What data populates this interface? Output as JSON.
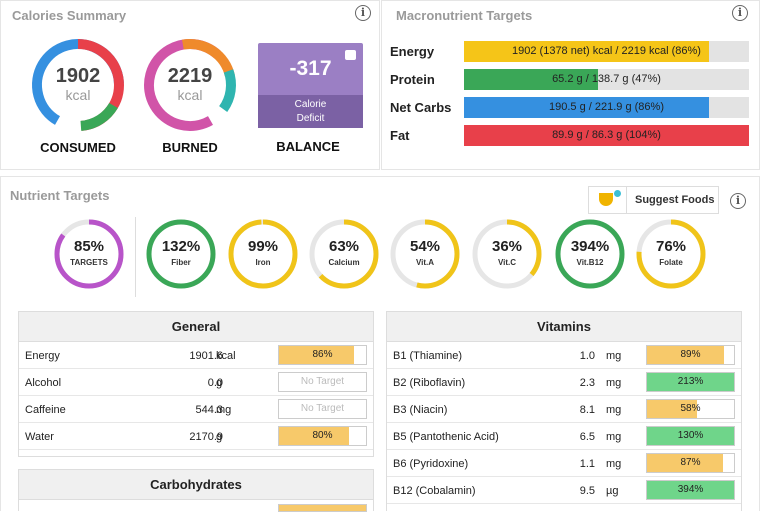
{
  "calories_summary": {
    "title": "Calories Summary",
    "consumed": {
      "value": "1902",
      "unit": "kcal",
      "label": "CONSUMED"
    },
    "burned": {
      "value": "2219",
      "unit": "kcal",
      "label": "BURNED"
    },
    "balance": {
      "value": "-317",
      "sub1": "Calorie",
      "sub2": "Deficit",
      "label": "BALANCE"
    }
  },
  "macro_targets": {
    "title": "Macronutrient Targets",
    "rows": [
      {
        "label": "Energy",
        "text": "1902 (1378 net) kcal / 2219 kcal (86%)",
        "fraction": 0.86,
        "color": "#f5c518"
      },
      {
        "label": "Protein",
        "text": "65.2 g / 138.7 g (47%)",
        "fraction": 0.47,
        "color": "#3aa757"
      },
      {
        "label": "Net Carbs",
        "text": "190.5 g / 221.9 g (86%)",
        "fraction": 0.86,
        "color": "#3590e0"
      },
      {
        "label": "Fat",
        "text": "89.9 g / 86.3 g (104%)",
        "fraction": 1.0,
        "color": "#e8404a"
      }
    ]
  },
  "nutrient_targets": {
    "title": "Nutrient Targets",
    "suggest_label": "Suggest Foods",
    "circles": [
      {
        "pct": "85%",
        "label": "TARGETS",
        "fraction": 0.85,
        "color": "#b854c9"
      },
      {
        "pct": "132%",
        "label": "Fiber",
        "fraction": 1.0,
        "color": "#3aa757"
      },
      {
        "pct": "99%",
        "label": "Iron",
        "fraction": 0.99,
        "color": "#f0c419"
      },
      {
        "pct": "63%",
        "label": "Calcium",
        "fraction": 0.63,
        "color": "#f0c419"
      },
      {
        "pct": "54%",
        "label": "Vit.A",
        "fraction": 0.54,
        "color": "#f0c419"
      },
      {
        "pct": "36%",
        "label": "Vit.C",
        "fraction": 0.36,
        "color": "#f0c419"
      },
      {
        "pct": "394%",
        "label": "Vit.B12",
        "fraction": 1.0,
        "color": "#3aa757"
      },
      {
        "pct": "76%",
        "label": "Folate",
        "fraction": 0.76,
        "color": "#f0c419"
      }
    ]
  },
  "general": {
    "title": "General",
    "rows": [
      {
        "name": "Energy",
        "amount": "1901.6",
        "unit": "kcal",
        "pct": "86%",
        "fraction": 0.86,
        "color": "#f7c96a"
      },
      {
        "name": "Alcohol",
        "amount": "0.0",
        "unit": "g",
        "pct": "No Target",
        "fraction": 0,
        "color": "#ffffff"
      },
      {
        "name": "Caffeine",
        "amount": "544.3",
        "unit": "mg",
        "pct": "No Target",
        "fraction": 0,
        "color": "#ffffff"
      },
      {
        "name": "Water",
        "amount": "2170.9",
        "unit": "g",
        "pct": "80%",
        "fraction": 0.8,
        "color": "#f7c96a"
      }
    ]
  },
  "vitamins": {
    "title": "Vitamins",
    "rows": [
      {
        "name": "B1 (Thiamine)",
        "amount": "1.0",
        "unit": "mg",
        "pct": "89%",
        "fraction": 0.89,
        "color": "#f7c96a"
      },
      {
        "name": "B2 (Riboflavin)",
        "amount": "2.3",
        "unit": "mg",
        "pct": "213%",
        "fraction": 1.0,
        "color": "#6fd58a"
      },
      {
        "name": "B3 (Niacin)",
        "amount": "8.1",
        "unit": "mg",
        "pct": "58%",
        "fraction": 0.58,
        "color": "#f7c96a"
      },
      {
        "name": "B5 (Pantothenic Acid)",
        "amount": "6.5",
        "unit": "mg",
        "pct": "130%",
        "fraction": 1.0,
        "color": "#6fd58a"
      },
      {
        "name": "B6 (Pyridoxine)",
        "amount": "1.1",
        "unit": "mg",
        "pct": "87%",
        "fraction": 0.87,
        "color": "#f7c96a"
      },
      {
        "name": "B12 (Cobalamin)",
        "amount": "9.5",
        "unit": "µg",
        "pct": "394%",
        "fraction": 1.0,
        "color": "#6fd58a"
      }
    ]
  },
  "carbohydrates": {
    "title": "Carbohydrates"
  }
}
